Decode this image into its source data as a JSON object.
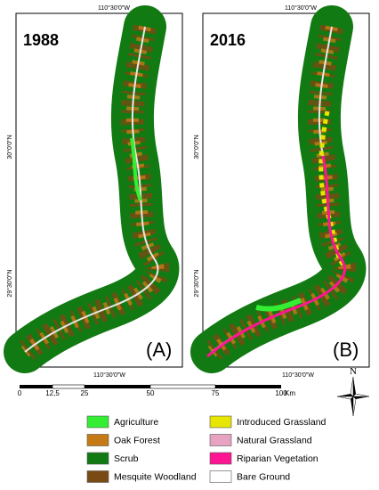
{
  "panels": [
    {
      "year": "1988",
      "label": "(A)",
      "top_lon": "110°30'0\"W",
      "bottom_lon": "110°30'0\"W",
      "lat_upper": "30°0'0\"N",
      "lat_lower": "29°30'0\"N"
    },
    {
      "year": "2016",
      "label": "(B)",
      "top_lon": "110°30'0\"W",
      "bottom_lon": "110°30'0\"W",
      "lat_upper": "30°0'0\"N",
      "lat_lower": "29°30'0\"N"
    }
  ],
  "scale_bar": {
    "labels": [
      "0",
      "12,5",
      "25",
      "50",
      "75",
      "100"
    ],
    "unit": "Km"
  },
  "north_arrow": {
    "label": "N"
  },
  "legend": [
    {
      "name": "Agriculture",
      "color": "#33ee33"
    },
    {
      "name": "Oak Forest",
      "color": "#c67a16"
    },
    {
      "name": "Scrub",
      "color": "#127a12"
    },
    {
      "name": "Mesquite Woodland",
      "color": "#7a4a14"
    },
    {
      "name": "Introduced Grassland",
      "color": "#e6e600"
    },
    {
      "name": "Natural Grassland",
      "color": "#e8a2c2"
    },
    {
      "name": "Riparian Vegetation",
      "color": "#ff1493"
    },
    {
      "name": "Bare Ground",
      "color": "#ffffff"
    }
  ]
}
